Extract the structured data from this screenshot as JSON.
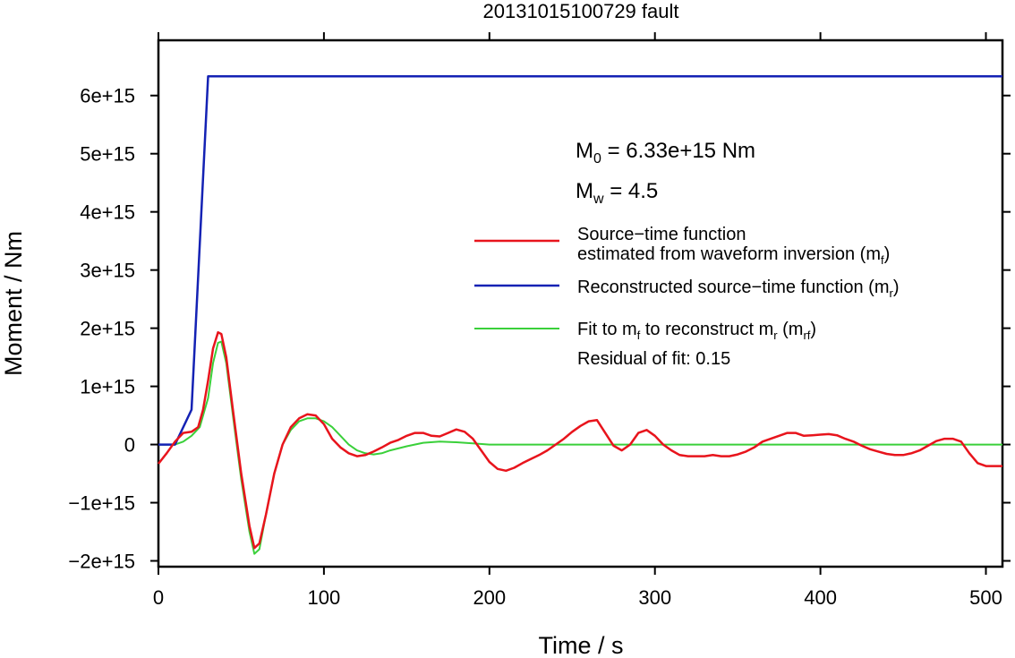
{
  "chart_data": {
    "type": "line",
    "title": "20131015100729 fault",
    "xlabel": "Time / s",
    "ylabel": "Moment / Nm",
    "xlim": [
      0,
      510
    ],
    "ylim": [
      -2100000000000000.0,
      6950000000000000.0
    ],
    "xticks": [
      {
        "value": 0,
        "label": "0"
      },
      {
        "value": 100,
        "label": "100"
      },
      {
        "value": 200,
        "label": "200"
      },
      {
        "value": 300,
        "label": "300"
      },
      {
        "value": 400,
        "label": "400"
      },
      {
        "value": 500,
        "label": "500"
      }
    ],
    "yticks": [
      {
        "value": -2000000000000000.0,
        "label": "−2e+15"
      },
      {
        "value": -1000000000000000.0,
        "label": "−1e+15"
      },
      {
        "value": 0,
        "label": "0"
      },
      {
        "value": 1000000000000000.0,
        "label": "1e+15"
      },
      {
        "value": 2000000000000000.0,
        "label": "2e+15"
      },
      {
        "value": 3000000000000000.0,
        "label": "3e+15"
      },
      {
        "value": 4000000000000000.0,
        "label": "4e+15"
      },
      {
        "value": 5000000000000000.0,
        "label": "5e+15"
      },
      {
        "value": 6000000000000000.0,
        "label": "6e+15"
      }
    ],
    "grid": false,
    "legend_position": "right",
    "annotations": {
      "m0": {
        "main": "M",
        "sub": "0",
        "rest": " = 6.33e+15 Nm"
      },
      "mw": {
        "main": "M",
        "sub": "w",
        "rest": " = 4.5"
      },
      "residual": "Residual of fit: 0.15"
    },
    "series": [
      {
        "key": "mf",
        "color": "#e8141c",
        "legend": {
          "line1": "Source−time function",
          "line2": "estimated from waveform inversion (m",
          "sub": "f",
          "close": ")"
        },
        "points": [
          [
            0,
            -330000000000000.0
          ],
          [
            5,
            -150000000000000.0
          ],
          [
            10,
            50000000000000.0
          ],
          [
            15,
            200000000000000.0
          ],
          [
            20,
            220000000000000.0
          ],
          [
            24,
            300000000000000.0
          ],
          [
            27,
            600000000000000.0
          ],
          [
            30,
            1100000000000000.0
          ],
          [
            33,
            1650000000000000.0
          ],
          [
            36,
            1930000000000000.0
          ],
          [
            38,
            1900000000000000.0
          ],
          [
            41,
            1500000000000000.0
          ],
          [
            45,
            600000000000000.0
          ],
          [
            50,
            -500000000000000.0
          ],
          [
            55,
            -1400000000000000.0
          ],
          [
            58,
            -1780000000000000.0
          ],
          [
            61,
            -1700000000000000.0
          ],
          [
            65,
            -1200000000000000.0
          ],
          [
            70,
            -500000000000000.0
          ],
          [
            75,
            0.0
          ],
          [
            80,
            300000000000000.0
          ],
          [
            85,
            450000000000000.0
          ],
          [
            90,
            520000000000000.0
          ],
          [
            95,
            500000000000000.0
          ],
          [
            100,
            350000000000000.0
          ],
          [
            105,
            100000000000000.0
          ],
          [
            110,
            -50000000000000.0
          ],
          [
            115,
            -150000000000000.0
          ],
          [
            120,
            -200000000000000.0
          ],
          [
            125,
            -180000000000000.0
          ],
          [
            130,
            -120000000000000.0
          ],
          [
            135,
            -50000000000000.0
          ],
          [
            140,
            30000000000000.0
          ],
          [
            145,
            80000000000000.0
          ],
          [
            150,
            150000000000000.0
          ],
          [
            155,
            200000000000000.0
          ],
          [
            160,
            200000000000000.0
          ],
          [
            165,
            150000000000000.0
          ],
          [
            170,
            140000000000000.0
          ],
          [
            175,
            200000000000000.0
          ],
          [
            180,
            260000000000000.0
          ],
          [
            185,
            220000000000000.0
          ],
          [
            190,
            100000000000000.0
          ],
          [
            195,
            -100000000000000.0
          ],
          [
            200,
            -300000000000000.0
          ],
          [
            205,
            -420000000000000.0
          ],
          [
            210,
            -450000000000000.0
          ],
          [
            215,
            -400000000000000.0
          ],
          [
            220,
            -320000000000000.0
          ],
          [
            225,
            -250000000000000.0
          ],
          [
            230,
            -180000000000000.0
          ],
          [
            235,
            -100000000000000.0
          ],
          [
            240,
            0.0
          ],
          [
            245,
            100000000000000.0
          ],
          [
            250,
            220000000000000.0
          ],
          [
            255,
            320000000000000.0
          ],
          [
            260,
            400000000000000.0
          ],
          [
            265,
            420000000000000.0
          ],
          [
            270,
            200000000000000.0
          ],
          [
            275,
            -20000000000000.0
          ],
          [
            280,
            -100000000000000.0
          ],
          [
            285,
            0.0
          ],
          [
            290,
            200000000000000.0
          ],
          [
            295,
            250000000000000.0
          ],
          [
            300,
            150000000000000.0
          ],
          [
            305,
            0.0
          ],
          [
            310,
            -100000000000000.0
          ],
          [
            315,
            -180000000000000.0
          ],
          [
            320,
            -200000000000000.0
          ],
          [
            325,
            -200000000000000.0
          ],
          [
            330,
            -200000000000000.0
          ],
          [
            335,
            -180000000000000.0
          ],
          [
            340,
            -200000000000000.0
          ],
          [
            345,
            -200000000000000.0
          ],
          [
            350,
            -170000000000000.0
          ],
          [
            355,
            -120000000000000.0
          ],
          [
            360,
            -50000000000000.0
          ],
          [
            365,
            50000000000000.0
          ],
          [
            370,
            100000000000000.0
          ],
          [
            375,
            150000000000000.0
          ],
          [
            380,
            200000000000000.0
          ],
          [
            385,
            200000000000000.0
          ],
          [
            390,
            150000000000000.0
          ],
          [
            395,
            160000000000000.0
          ],
          [
            400,
            170000000000000.0
          ],
          [
            405,
            180000000000000.0
          ],
          [
            410,
            160000000000000.0
          ],
          [
            415,
            100000000000000.0
          ],
          [
            420,
            50000000000000.0
          ],
          [
            425,
            -20000000000000.0
          ],
          [
            430,
            -80000000000000.0
          ],
          [
            435,
            -120000000000000.0
          ],
          [
            440,
            -160000000000000.0
          ],
          [
            445,
            -180000000000000.0
          ],
          [
            450,
            -180000000000000.0
          ],
          [
            455,
            -150000000000000.0
          ],
          [
            460,
            -100000000000000.0
          ],
          [
            465,
            -20000000000000.0
          ],
          [
            470,
            60000000000000.0
          ],
          [
            475,
            100000000000000.0
          ],
          [
            480,
            100000000000000.0
          ],
          [
            485,
            50000000000000.0
          ],
          [
            490,
            -150000000000000.0
          ],
          [
            495,
            -320000000000000.0
          ],
          [
            500,
            -370000000000000.0
          ],
          [
            505,
            -370000000000000.0
          ],
          [
            510,
            -370000000000000.0
          ]
        ]
      },
      {
        "key": "mr",
        "color": "#1422b4",
        "legend": {
          "line1": "Reconstructed source−time function (m",
          "sub": "r",
          "close": ")"
        },
        "points": [
          [
            0,
            0
          ],
          [
            10,
            0
          ],
          [
            20,
            600000000000000.0
          ],
          [
            30,
            6330000000000000.0
          ],
          [
            510,
            6330000000000000.0
          ]
        ]
      },
      {
        "key": "mrf",
        "color": "#3ad03a",
        "legend": {
          "line1": "Fit to m",
          "sub1": "f",
          "mid": " to reconstruct m",
          "sub2": "r",
          "mid2": " (m",
          "sub3": "rf",
          "close": ")"
        },
        "points": [
          [
            0,
            0
          ],
          [
            10,
            0
          ],
          [
            15,
            50000000000000.0
          ],
          [
            20,
            150000000000000.0
          ],
          [
            25,
            300000000000000.0
          ],
          [
            30,
            800000000000000.0
          ],
          [
            33,
            1400000000000000.0
          ],
          [
            36,
            1750000000000000.0
          ],
          [
            38,
            1770000000000000.0
          ],
          [
            41,
            1400000000000000.0
          ],
          [
            45,
            500000000000000.0
          ],
          [
            50,
            -600000000000000.0
          ],
          [
            55,
            -1500000000000000.0
          ],
          [
            58,
            -1880000000000000.0
          ],
          [
            61,
            -1800000000000000.0
          ],
          [
            65,
            -1200000000000000.0
          ],
          [
            70,
            -500000000000000.0
          ],
          [
            75,
            0.0
          ],
          [
            80,
            250000000000000.0
          ],
          [
            85,
            400000000000000.0
          ],
          [
            90,
            450000000000000.0
          ],
          [
            95,
            450000000000000.0
          ],
          [
            100,
            400000000000000.0
          ],
          [
            105,
            300000000000000.0
          ],
          [
            110,
            150000000000000.0
          ],
          [
            115,
            0.0
          ],
          [
            120,
            -100000000000000.0
          ],
          [
            125,
            -150000000000000.0
          ],
          [
            130,
            -170000000000000.0
          ],
          [
            135,
            -150000000000000.0
          ],
          [
            140,
            -100000000000000.0
          ],
          [
            150,
            -30000000000000.0
          ],
          [
            160,
            30000000000000.0
          ],
          [
            170,
            50000000000000.0
          ],
          [
            180,
            40000000000000.0
          ],
          [
            190,
            20000000000000.0
          ],
          [
            200,
            0.0
          ],
          [
            510,
            0.0
          ]
        ]
      }
    ]
  }
}
